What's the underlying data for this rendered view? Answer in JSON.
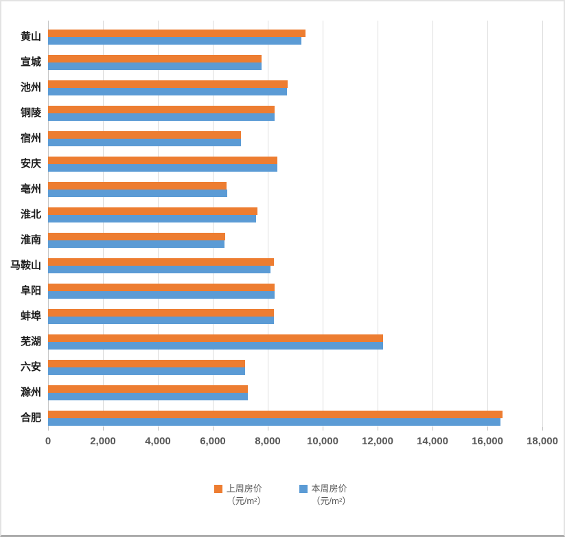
{
  "chart_data": {
    "type": "bar",
    "orientation": "horizontal",
    "title": "",
    "categories": [
      "黄山",
      "宣城",
      "池州",
      "铜陵",
      "宿州",
      "安庆",
      "亳州",
      "淮北",
      "淮南",
      "马鞍山",
      "阜阳",
      "蚌埠",
      "芜湖",
      "六安",
      "滁州",
      "合肥"
    ],
    "series": [
      {
        "name": "上周房价（元/m²）",
        "legend_line1": "上周房价",
        "legend_line2": "（元/m²）",
        "color": "#ED7D31",
        "values": [
          9380,
          7780,
          8730,
          8240,
          7030,
          8350,
          6500,
          7630,
          6460,
          8230,
          8250,
          8230,
          12190,
          7180,
          7270,
          16550
        ]
      },
      {
        "name": "本周房价（元/m²）",
        "legend_line1": "本周房价",
        "legend_line2": "（元/m²）",
        "color": "#5B9BD5",
        "values": [
          9220,
          7780,
          8710,
          8240,
          7030,
          8350,
          6530,
          7570,
          6420,
          8090,
          8250,
          8220,
          12200,
          7180,
          7270,
          16470
        ]
      }
    ],
    "xlim": [
      0,
      18000
    ],
    "x_tick_labels": [
      "0",
      "2,000",
      "4,000",
      "6,000",
      "8,000",
      "10,000",
      "12,000",
      "14,000",
      "16,000",
      "18,000"
    ],
    "grid": true,
    "legend_position": "bottom"
  },
  "colors": {
    "last_week_bar": "#ED7D31",
    "this_week_bar": "#5B9BD5",
    "gridline": "#DCDCDC",
    "axis_line": "#C6C6C6",
    "tick_label": "#595959",
    "category_label": "#1A1A1A",
    "legend_text": "#595959"
  }
}
